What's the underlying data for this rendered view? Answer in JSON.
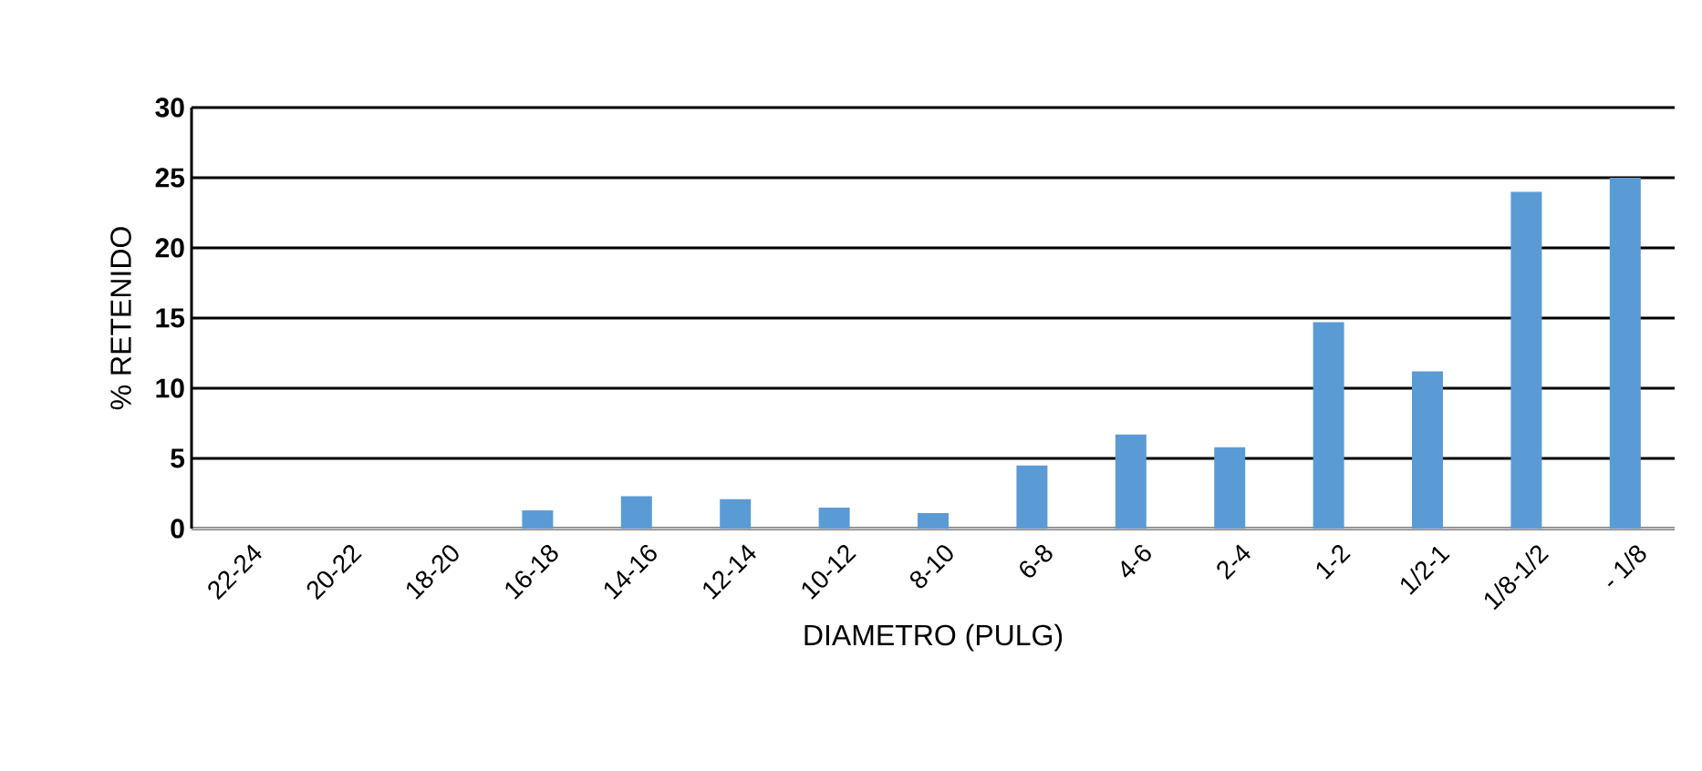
{
  "chart_data": {
    "type": "bar",
    "xlabel": "DIAMETRO (PULG)",
    "ylabel": "% RETENIDO",
    "categories": [
      "22-24",
      "20-22",
      "18-20",
      "16-18",
      "14-16",
      "12-14",
      "10-12",
      "8-10",
      "6-8",
      "4-6",
      "2-4",
      "1-2",
      "1/2-1",
      "1/8-1/2",
      "- 1/8"
    ],
    "values": [
      0,
      0,
      0,
      1.3,
      2.3,
      2.1,
      1.5,
      1.1,
      4.5,
      6.7,
      5.8,
      14.7,
      11.2,
      24.0,
      25.0
    ],
    "color": "#5b9bd5",
    "ylim": [
      0,
      30
    ],
    "yticks": [
      0,
      5,
      10,
      15,
      20,
      25,
      30
    ],
    "grid": "y"
  }
}
